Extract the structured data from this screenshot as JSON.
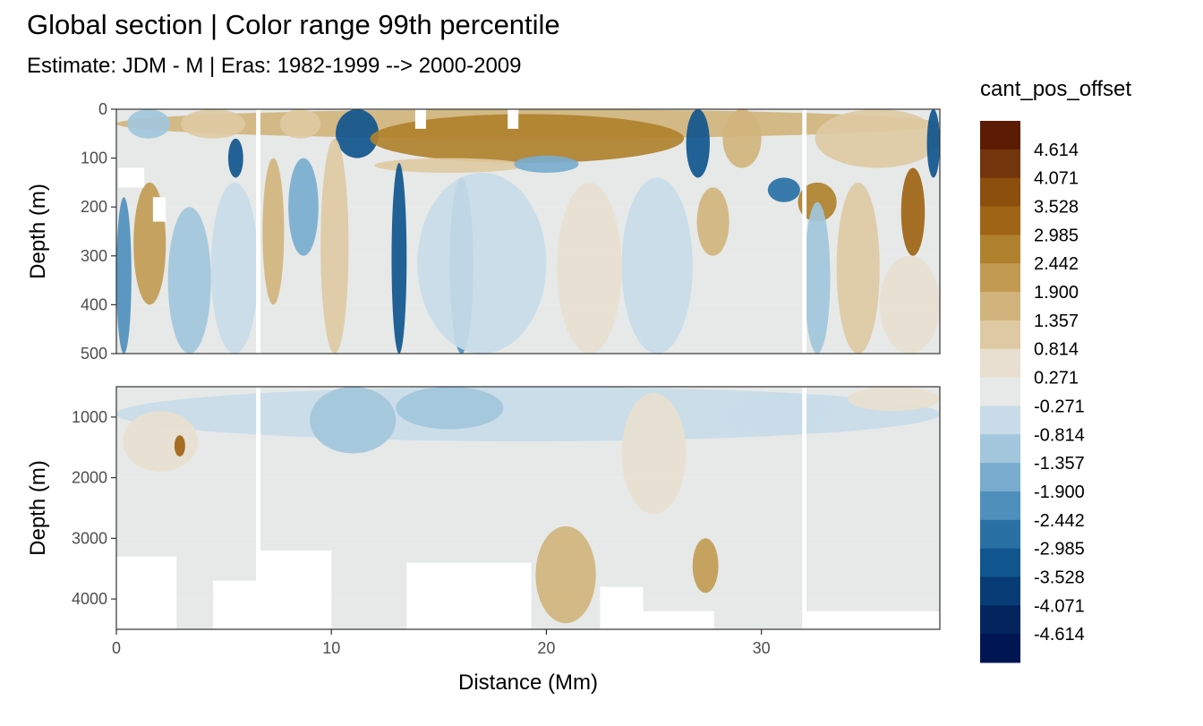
{
  "title": "Global section | Color range 99th percentile",
  "subtitle": "Estimate: JDM - M | Eras: 1982-1999 --> 2000-2009",
  "chart_data": {
    "type": "heatmap",
    "title": "Global section | Color range 99th percentile",
    "subtitle": "Estimate: JDM - M | Eras: 1982-1999 --> 2000-2009",
    "xlabel": "Distance (Mm)",
    "xlim": [
      0,
      38.3
    ],
    "x_ticks": [
      0,
      10,
      20,
      30
    ],
    "panels": [
      {
        "name": "upper",
        "ylabel": "Depth (m)",
        "ylim": [
          500,
          0
        ],
        "y_ticks": [
          0,
          100,
          200,
          300,
          400,
          500
        ]
      },
      {
        "name": "lower",
        "ylabel": "Depth (m)",
        "ylim": [
          4500,
          500
        ],
        "y_ticks": [
          1000,
          2000,
          3000,
          4000
        ]
      }
    ],
    "legend": {
      "title": "cant_pos_offset",
      "position": "right",
      "labels": [
        "4.614",
        "4.071",
        "3.528",
        "2.985",
        "2.442",
        "1.900",
        "1.357",
        "0.814",
        "0.271",
        "-0.271",
        "-0.814",
        "-1.357",
        "-1.900",
        "-2.442",
        "-2.985",
        "-3.528",
        "-4.071",
        "-4.614"
      ],
      "colors": [
        "#5b1c03",
        "#73350c",
        "#8c4f0e",
        "#9f6414",
        "#b0812c",
        "#c29b52",
        "#d1b47c",
        "#dec9a3",
        "#e8dfd0",
        "#e6e9e8",
        "#c8dbe8",
        "#a2c6db",
        "#79acce",
        "#4f8fbc",
        "#2970a5",
        "#10558e",
        "#083c76",
        "#04245e",
        "#001653"
      ]
    },
    "fields": [
      {
        "panel": "upper",
        "x_range": [
          0,
          38.3
        ],
        "depth_range": [
          0,
          60
        ],
        "value": 1.6
      },
      {
        "panel": "upper",
        "x_range": [
          0.5,
          2.5
        ],
        "depth_range": [
          0,
          60
        ],
        "value": -1.1
      },
      {
        "panel": "upper",
        "x_range": [
          3,
          6
        ],
        "depth_range": [
          0,
          60
        ],
        "value": 1.1
      },
      {
        "panel": "upper",
        "x_range": [
          7.6,
          9.5
        ],
        "depth_range": [
          0,
          60
        ],
        "value": 1.1
      },
      {
        "panel": "upper",
        "x_range": [
          10.2,
          12.2
        ],
        "depth_range": [
          0,
          100
        ],
        "value": -3.3
      },
      {
        "panel": "upper",
        "x_range": [
          11.8,
          26.4
        ],
        "depth_range": [
          10,
          110
        ],
        "value": 2.9
      },
      {
        "panel": "upper",
        "x_range": [
          12,
          19
        ],
        "depth_range": [
          100,
          130
        ],
        "value": 1.2
      },
      {
        "panel": "upper",
        "x_range": [
          18.5,
          21.5
        ],
        "depth_range": [
          95,
          130
        ],
        "value": -1.4
      },
      {
        "panel": "upper",
        "x_range": [
          26.5,
          27.6
        ],
        "depth_range": [
          0,
          140
        ],
        "value": -3.0
      },
      {
        "panel": "upper",
        "x_range": [
          28.2,
          30
        ],
        "depth_range": [
          0,
          120
        ],
        "value": 1.4
      },
      {
        "panel": "upper",
        "x_range": [
          32.5,
          38.3
        ],
        "depth_range": [
          0,
          120
        ],
        "value": 1.0
      },
      {
        "panel": "upper",
        "x_range": [
          30.3,
          31.8
        ],
        "depth_range": [
          140,
          190
        ],
        "value": -2.9
      },
      {
        "panel": "upper",
        "x_range": [
          31.7,
          33.5
        ],
        "depth_range": [
          150,
          230
        ],
        "value": 2.5
      },
      {
        "panel": "upper",
        "x_range": [
          36.5,
          37.6
        ],
        "depth_range": [
          120,
          300
        ],
        "value": 3.0
      },
      {
        "panel": "upper",
        "x_range": [
          37.7,
          38.3
        ],
        "depth_range": [
          0,
          140
        ],
        "value": -3.0
      },
      {
        "panel": "upper",
        "x_range": [
          0,
          0.7
        ],
        "depth_range": [
          180,
          500
        ],
        "value": -2.0
      },
      {
        "panel": "upper",
        "x_range": [
          0.8,
          2.3
        ],
        "depth_range": [
          150,
          400
        ],
        "value": 2.2
      },
      {
        "panel": "upper",
        "x_range": [
          2.4,
          4.4
        ],
        "depth_range": [
          200,
          500
        ],
        "value": -1.0
      },
      {
        "panel": "upper",
        "x_range": [
          4.4,
          6.6
        ],
        "depth_range": [
          150,
          500
        ],
        "value": -0.8
      },
      {
        "panel": "upper",
        "x_range": [
          5.2,
          5.9
        ],
        "depth_range": [
          60,
          140
        ],
        "value": -3.4
      },
      {
        "panel": "upper",
        "x_range": [
          6.8,
          7.8
        ],
        "depth_range": [
          100,
          400
        ],
        "value": 1.4
      },
      {
        "panel": "upper",
        "x_range": [
          8,
          9.4
        ],
        "depth_range": [
          100,
          300
        ],
        "value": -1.5
      },
      {
        "panel": "upper",
        "x_range": [
          9.5,
          10.8
        ],
        "depth_range": [
          60,
          500
        ],
        "value": 1.0
      },
      {
        "panel": "upper",
        "x_range": [
          12.8,
          13.5
        ],
        "depth_range": [
          110,
          500
        ],
        "value": -3.2
      },
      {
        "panel": "upper",
        "x_range": [
          15.5,
          16.6
        ],
        "depth_range": [
          140,
          500
        ],
        "value": -2.0
      },
      {
        "panel": "upper",
        "x_range": [
          14,
          20
        ],
        "depth_range": [
          130,
          500
        ],
        "value": -0.8
      },
      {
        "panel": "upper",
        "x_range": [
          20.5,
          23.5
        ],
        "depth_range": [
          150,
          500
        ],
        "value": 0.6
      },
      {
        "panel": "upper",
        "x_range": [
          23.5,
          26.8
        ],
        "depth_range": [
          140,
          500
        ],
        "value": -0.3
      },
      {
        "panel": "upper",
        "x_range": [
          27,
          28.5
        ],
        "depth_range": [
          160,
          300
        ],
        "value": 1.8
      },
      {
        "panel": "upper",
        "x_range": [
          32,
          33.2
        ],
        "depth_range": [
          190,
          500
        ],
        "value": -1.0
      },
      {
        "panel": "upper",
        "x_range": [
          33.5,
          35.5
        ],
        "depth_range": [
          150,
          500
        ],
        "value": 0.9
      },
      {
        "panel": "upper",
        "x_range": [
          35.5,
          38.3
        ],
        "depth_range": [
          300,
          500
        ],
        "value": 0.8
      },
      {
        "panel": "lower",
        "x_range": [
          0,
          38.3
        ],
        "depth_range": [
          500,
          1400
        ],
        "value": -0.3
      },
      {
        "panel": "lower",
        "x_range": [
          0.3,
          3.8
        ],
        "depth_range": [
          900,
          1900
        ],
        "value": 0.6
      },
      {
        "panel": "lower",
        "x_range": [
          2.7,
          3.2
        ],
        "depth_range": [
          1300,
          1650
        ],
        "value": 3.5
      },
      {
        "panel": "lower",
        "x_range": [
          9,
          13
        ],
        "depth_range": [
          500,
          1600
        ],
        "value": -0.9
      },
      {
        "panel": "lower",
        "x_range": [
          13,
          18
        ],
        "depth_range": [
          500,
          1200
        ],
        "value": -0.9
      },
      {
        "panel": "lower",
        "x_range": [
          19.5,
          22.3
        ],
        "depth_range": [
          2800,
          4400
        ],
        "value": 1.8
      },
      {
        "panel": "lower",
        "x_range": [
          23.5,
          26.5
        ],
        "depth_range": [
          600,
          2600
        ],
        "value": 0.6
      },
      {
        "panel": "lower",
        "x_range": [
          26.8,
          28
        ],
        "depth_range": [
          3000,
          3900
        ],
        "value": 2.2
      },
      {
        "panel": "lower",
        "x_range": [
          28.6,
          33
        ],
        "depth_range": [
          600,
          1300
        ],
        "value": -0.4
      },
      {
        "panel": "lower",
        "x_range": [
          34,
          38.3
        ],
        "depth_range": [
          500,
          900
        ],
        "value": 0.6
      }
    ],
    "no_data_regions": [
      {
        "panel": "upper",
        "x_range": [
          0.1,
          1.3
        ],
        "depth_range": [
          120,
          160
        ]
      },
      {
        "panel": "upper",
        "x_range": [
          1.7,
          2.3
        ],
        "depth_range": [
          180,
          230
        ]
      },
      {
        "panel": "upper",
        "x_range": [
          13.9,
          14.4
        ],
        "depth_range": [
          0,
          40
        ]
      },
      {
        "panel": "upper",
        "x_range": [
          18.2,
          18.7
        ],
        "depth_range": [
          0,
          40
        ]
      },
      {
        "panel": "upper",
        "x_range": [
          6.5,
          6.7
        ],
        "depth_range": [
          0,
          500
        ]
      },
      {
        "panel": "upper",
        "x_range": [
          31.9,
          32.1
        ],
        "depth_range": [
          0,
          500
        ]
      },
      {
        "panel": "lower",
        "x_range": [
          6.5,
          6.7
        ],
        "depth_range": [
          500,
          4500
        ]
      },
      {
        "panel": "lower",
        "x_range": [
          31.9,
          32.1
        ],
        "depth_range": [
          500,
          4500
        ]
      },
      {
        "panel": "lower",
        "x_range": [
          0,
          2.8
        ],
        "depth_range": [
          3300,
          4500
        ]
      },
      {
        "panel": "lower",
        "x_range": [
          4.5,
          6.5
        ],
        "depth_range": [
          3700,
          4500
        ]
      },
      {
        "panel": "lower",
        "x_range": [
          6.7,
          10
        ],
        "depth_range": [
          3200,
          4500
        ]
      },
      {
        "panel": "lower",
        "x_range": [
          13.5,
          19.3
        ],
        "depth_range": [
          3400,
          4500
        ]
      },
      {
        "panel": "lower",
        "x_range": [
          22.5,
          24.5
        ],
        "depth_range": [
          3800,
          4500
        ]
      },
      {
        "panel": "lower",
        "x_range": [
          24.5,
          27.8
        ],
        "depth_range": [
          4200,
          4500
        ]
      },
      {
        "panel": "lower",
        "x_range": [
          32.1,
          38.3
        ],
        "depth_range": [
          4200,
          4500
        ]
      }
    ]
  }
}
